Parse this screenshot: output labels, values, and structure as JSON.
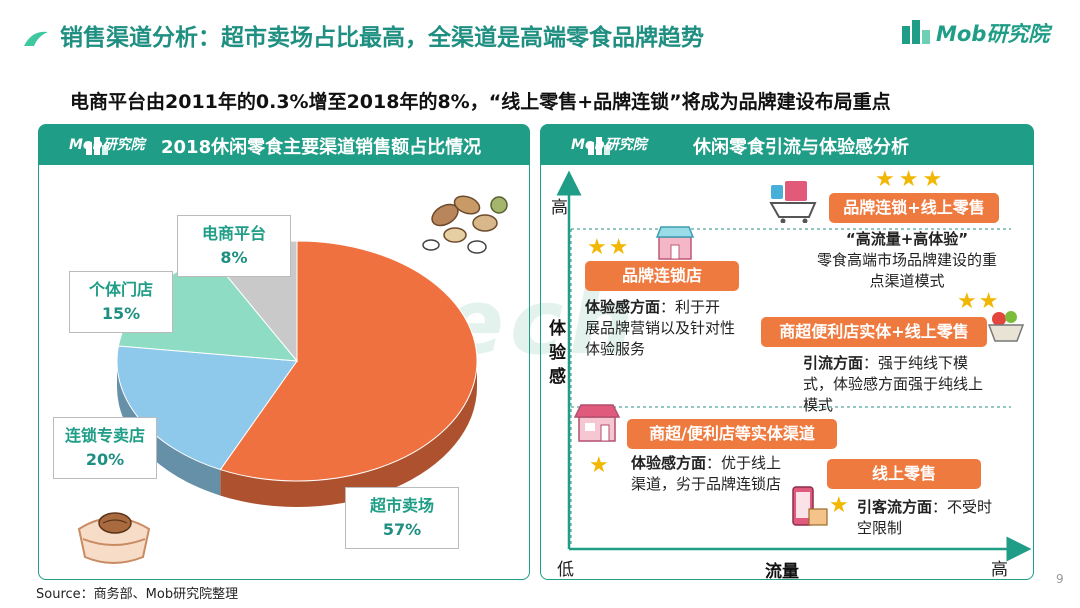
{
  "header": {
    "title": "销售渠道分析：超市卖场占比最高，全渠道是高端零食品牌趋势",
    "subtitle": "电商平台由2011年的0.3%增至2018年的8%，“线上零售+品牌连锁”将成为品牌建设布局重点",
    "logo_text": "Mob研究院"
  },
  "colors": {
    "brand": "#1f9d86",
    "accent_orange": "#ef7a3f",
    "star": "#f2b705"
  },
  "left_panel": {
    "logo_text": "Mob研究院",
    "title": "2018休闲零食主要渠道销售额占比情况"
  },
  "chart_data": {
    "type": "pie",
    "title": "2018休闲零食主要渠道销售额占比情况",
    "slices": [
      {
        "label": "超市卖场",
        "value": 57,
        "display": "57%",
        "color": "#f07140"
      },
      {
        "label": "连锁专卖店",
        "value": 20,
        "display": "20%",
        "color": "#8ec8ea"
      },
      {
        "label": "个体门店",
        "value": 15,
        "display": "15%",
        "color": "#8fdcc4"
      },
      {
        "label": "电商平台",
        "value": 8,
        "display": "8%",
        "color": "#c9c9c9"
      }
    ]
  },
  "right_panel": {
    "logo_text": "Mob研究院",
    "title": "休闲零食引流与体验感分析",
    "y_axis": {
      "high": "高",
      "label": "体验感",
      "low": "低"
    },
    "x_axis": {
      "label": "流量",
      "high": "高"
    },
    "items": [
      {
        "label": "品牌连锁+线上零售",
        "stars": 3,
        "desc_bold": "“高流量+高体验”",
        "desc": "零食高端市场品牌建设的重点渠道模式"
      },
      {
        "label": "品牌连锁店",
        "stars": 2,
        "desc_bold": "体验感方面",
        "desc": "：利于开展品牌营销以及针对性体验服务"
      },
      {
        "label": "商超便利店实体+线上零售",
        "stars": 2,
        "desc_bold": "引流方面",
        "desc": "：强于纯线下模式，体验感方面强于纯线上模式"
      },
      {
        "label": "商超/便利店等实体渠道",
        "stars": 1,
        "desc_bold": "体验感方面",
        "desc": "：优于线上渠道，劣于品牌连锁店"
      },
      {
        "label": "线上零售",
        "stars": 1,
        "desc_bold": "引客流方面",
        "desc": "：不受时空限制"
      }
    ]
  },
  "footer": {
    "source": "Source：商务部、Mob研究院整理",
    "page": "9"
  }
}
